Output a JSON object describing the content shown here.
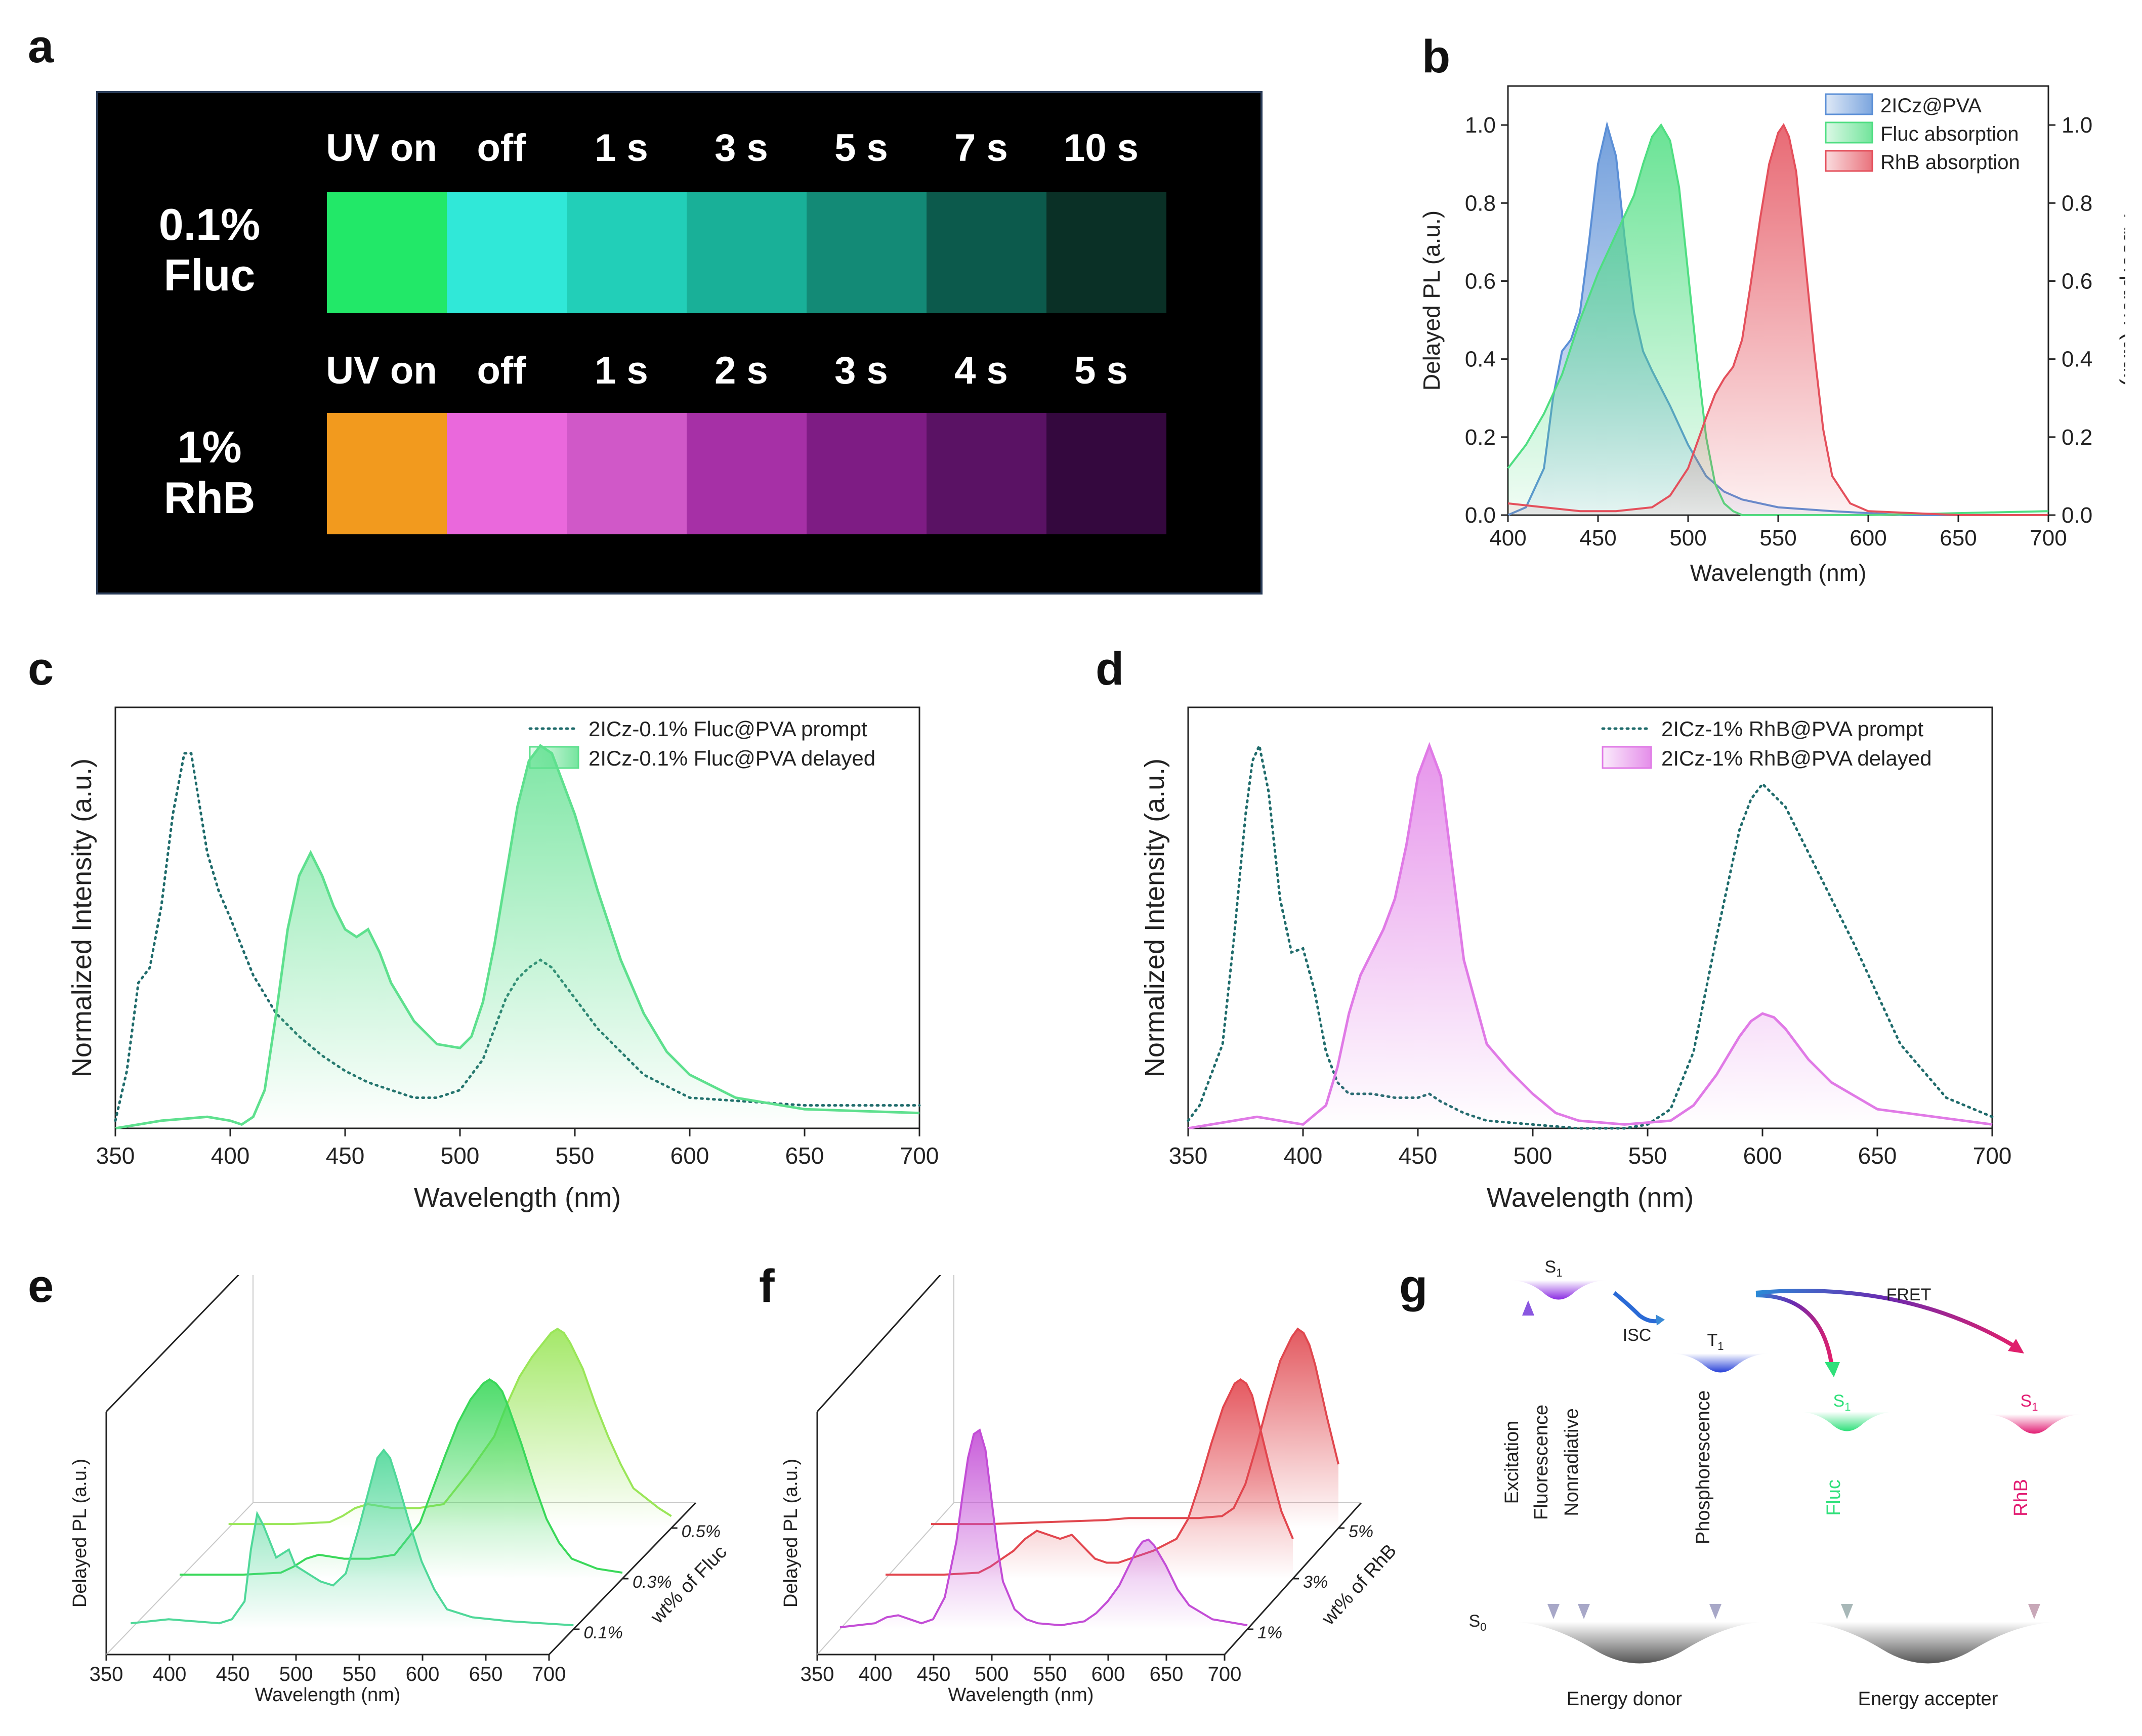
{
  "panels": {
    "a": "a",
    "b": "b",
    "c": "c",
    "d": "d",
    "e": "e",
    "f": "f",
    "g": "g"
  },
  "photo": {
    "row1": {
      "name_line1": "0.1%",
      "name_line2": "Fluc",
      "labels": [
        "UV on",
        "off",
        "1 s",
        "3 s",
        "5 s",
        "7 s",
        "10 s"
      ],
      "colors": [
        "#22e868",
        "#30e8d8",
        "#22cfb8",
        "#19b098",
        "#138a76",
        "#0c5a4c",
        "#0a3026"
      ]
    },
    "row2": {
      "name_line1": "1%",
      "name_line2": "RhB",
      "labels": [
        "UV on",
        "off",
        "1 s",
        "2 s",
        "3 s",
        "4 s",
        "5 s"
      ],
      "colors": [
        "#f29a1e",
        "#ea68dc",
        "#d058c8",
        "#a630a6",
        "#7e1c84",
        "#5a1264",
        "#34083e"
      ]
    }
  },
  "chart_data": [
    {
      "id": "b",
      "type": "area",
      "xlabel": "Wavelength (nm)",
      "ylabel": "Delayed PL (a.u.)",
      "y2label": "Absorption (a.u.)",
      "xlim": [
        400,
        700
      ],
      "ylim": [
        0,
        1.1
      ],
      "y2lim": [
        0,
        1.1
      ],
      "xticks": [
        400,
        450,
        500,
        550,
        600,
        650,
        700
      ],
      "yticks": [
        0.0,
        0.2,
        0.4,
        0.6,
        0.8,
        1.0
      ],
      "legend": "top-right",
      "series": [
        {
          "name": "2ICz@PVA",
          "color": "#5b8fd6",
          "x": [
            400,
            410,
            420,
            425,
            430,
            435,
            440,
            445,
            450,
            455,
            460,
            465,
            470,
            475,
            480,
            490,
            500,
            510,
            520,
            530,
            550,
            580,
            620,
            700
          ],
          "y": [
            0.0,
            0.02,
            0.12,
            0.3,
            0.42,
            0.45,
            0.52,
            0.7,
            0.9,
            1.0,
            0.92,
            0.7,
            0.52,
            0.42,
            0.37,
            0.28,
            0.18,
            0.1,
            0.06,
            0.04,
            0.02,
            0.01,
            0.0,
            0.0
          ]
        },
        {
          "name": "Fluc absorption",
          "color": "#4fde82",
          "x": [
            400,
            410,
            420,
            430,
            440,
            450,
            460,
            470,
            475,
            480,
            485,
            490,
            495,
            500,
            505,
            510,
            515,
            520,
            525,
            530,
            540,
            560,
            600,
            700
          ],
          "y": [
            0.12,
            0.18,
            0.26,
            0.36,
            0.5,
            0.62,
            0.72,
            0.82,
            0.9,
            0.97,
            1.0,
            0.96,
            0.84,
            0.62,
            0.4,
            0.2,
            0.08,
            0.03,
            0.01,
            0.0,
            0.0,
            0.0,
            0.0,
            0.01
          ]
        },
        {
          "name": "RhB absorption",
          "color": "#e4505c",
          "x": [
            400,
            420,
            440,
            460,
            480,
            490,
            500,
            510,
            515,
            520,
            525,
            530,
            535,
            540,
            545,
            550,
            553,
            556,
            560,
            565,
            570,
            575,
            580,
            590,
            600,
            650,
            700
          ],
          "y": [
            0.03,
            0.02,
            0.01,
            0.01,
            0.02,
            0.05,
            0.12,
            0.25,
            0.31,
            0.35,
            0.38,
            0.45,
            0.6,
            0.76,
            0.9,
            0.98,
            1.0,
            0.97,
            0.88,
            0.65,
            0.42,
            0.22,
            0.1,
            0.03,
            0.01,
            0.0,
            0.0
          ]
        }
      ]
    },
    {
      "id": "c",
      "type": "line",
      "xlabel": "Wavelength (nm)",
      "ylabel": "Normalized Intensity (a.u.)",
      "xlim": [
        350,
        700
      ],
      "ylim": [
        0,
        1.1
      ],
      "xticks": [
        350,
        400,
        450,
        500,
        550,
        600,
        650,
        700
      ],
      "legend": "top-right",
      "series": [
        {
          "name": "2ICz-0.1% Fluc@PVA prompt",
          "style": "dotted",
          "color": "#1f6b6b",
          "x": [
            350,
            355,
            360,
            365,
            370,
            375,
            380,
            383,
            390,
            395,
            400,
            410,
            420,
            430,
            440,
            450,
            460,
            470,
            480,
            490,
            500,
            510,
            520,
            525,
            530,
            535,
            540,
            545,
            550,
            560,
            570,
            580,
            600,
            650,
            700
          ],
          "y": [
            0.02,
            0.15,
            0.38,
            0.42,
            0.58,
            0.82,
            0.98,
            0.98,
            0.72,
            0.62,
            0.55,
            0.4,
            0.3,
            0.24,
            0.19,
            0.15,
            0.12,
            0.1,
            0.08,
            0.08,
            0.1,
            0.18,
            0.34,
            0.39,
            0.42,
            0.44,
            0.42,
            0.38,
            0.34,
            0.26,
            0.2,
            0.14,
            0.08,
            0.06,
            0.06
          ]
        },
        {
          "name": "2ICz-0.1% Fluc@PVA delayed",
          "style": "filled",
          "color": "#5ee08e",
          "x": [
            350,
            370,
            390,
            400,
            405,
            410,
            415,
            420,
            425,
            430,
            435,
            440,
            445,
            450,
            455,
            460,
            465,
            470,
            480,
            490,
            500,
            505,
            510,
            515,
            520,
            525,
            530,
            535,
            540,
            545,
            550,
            560,
            570,
            580,
            590,
            600,
            620,
            650,
            700
          ],
          "y": [
            0.0,
            0.02,
            0.03,
            0.02,
            0.01,
            0.03,
            0.1,
            0.3,
            0.52,
            0.66,
            0.72,
            0.66,
            0.58,
            0.52,
            0.5,
            0.52,
            0.46,
            0.38,
            0.28,
            0.22,
            0.21,
            0.24,
            0.33,
            0.48,
            0.66,
            0.84,
            0.96,
            1.0,
            0.98,
            0.9,
            0.82,
            0.62,
            0.44,
            0.3,
            0.2,
            0.14,
            0.08,
            0.05,
            0.04
          ]
        }
      ]
    },
    {
      "id": "d",
      "type": "line",
      "xlabel": "Wavelength (nm)",
      "ylabel": "Normalized Intensity (a.u.)",
      "xlim": [
        350,
        700
      ],
      "ylim": [
        0,
        1.1
      ],
      "xticks": [
        350,
        400,
        450,
        500,
        550,
        600,
        650,
        700
      ],
      "legend": "top-right",
      "series": [
        {
          "name": "2ICz-1% RhB@PVA prompt",
          "style": "dotted",
          "color": "#1f6b6b",
          "x": [
            350,
            355,
            360,
            365,
            370,
            375,
            378,
            381,
            385,
            390,
            395,
            400,
            405,
            410,
            415,
            420,
            430,
            440,
            450,
            455,
            460,
            470,
            480,
            500,
            520,
            540,
            550,
            560,
            570,
            580,
            590,
            595,
            600,
            610,
            620,
            630,
            640,
            650,
            660,
            680,
            700
          ],
          "y": [
            0.02,
            0.06,
            0.14,
            0.22,
            0.5,
            0.82,
            0.96,
            1.0,
            0.88,
            0.6,
            0.46,
            0.47,
            0.36,
            0.2,
            0.12,
            0.09,
            0.09,
            0.08,
            0.08,
            0.09,
            0.07,
            0.04,
            0.02,
            0.01,
            0.0,
            0.0,
            0.01,
            0.05,
            0.2,
            0.5,
            0.78,
            0.86,
            0.9,
            0.84,
            0.72,
            0.6,
            0.48,
            0.35,
            0.22,
            0.08,
            0.03
          ]
        },
        {
          "name": "2ICz-1% RhB@PVA delayed",
          "style": "filled",
          "color": "#e07ae6",
          "x": [
            350,
            360,
            370,
            380,
            390,
            400,
            410,
            415,
            420,
            425,
            430,
            435,
            440,
            445,
            450,
            455,
            460,
            465,
            470,
            480,
            490,
            500,
            510,
            520,
            540,
            560,
            570,
            580,
            590,
            595,
            600,
            605,
            610,
            620,
            630,
            650,
            700
          ],
          "y": [
            0.0,
            0.01,
            0.02,
            0.03,
            0.02,
            0.01,
            0.06,
            0.16,
            0.3,
            0.4,
            0.46,
            0.52,
            0.6,
            0.74,
            0.92,
            1.0,
            0.92,
            0.68,
            0.44,
            0.22,
            0.15,
            0.09,
            0.04,
            0.02,
            0.01,
            0.02,
            0.06,
            0.14,
            0.24,
            0.28,
            0.3,
            0.29,
            0.26,
            0.18,
            0.12,
            0.05,
            0.01
          ]
        }
      ]
    },
    {
      "id": "e",
      "type": "area",
      "xlabel": "Wavelength (nm)",
      "ylabel": "Delayed PL (a.u.)",
      "zlabel": "wt% of Fluc",
      "xlim": [
        350,
        700
      ],
      "xticks": [
        350,
        400,
        450,
        500,
        550,
        600,
        650,
        700
      ],
      "zticks": [
        "0.1%",
        "0.3%",
        "0.5%"
      ],
      "series": [
        {
          "name": "0.1%",
          "color": "#4fd899",
          "x": [
            350,
            380,
            400,
            420,
            430,
            440,
            445,
            450,
            455,
            460,
            465,
            470,
            475,
            480,
            485,
            490,
            495,
            500,
            510,
            520,
            530,
            540,
            545,
            550,
            555,
            560,
            570,
            580,
            590,
            600,
            620,
            650,
            700
          ],
          "y": [
            0.03,
            0.05,
            0.04,
            0.03,
            0.05,
            0.14,
            0.4,
            0.58,
            0.52,
            0.44,
            0.36,
            0.38,
            0.4,
            0.32,
            0.3,
            0.28,
            0.26,
            0.24,
            0.22,
            0.28,
            0.5,
            0.74,
            0.86,
            0.9,
            0.86,
            0.76,
            0.54,
            0.34,
            0.2,
            0.1,
            0.06,
            0.04,
            0.02
          ]
        },
        {
          "name": "0.3%",
          "color": "#3ad85a",
          "x": [
            350,
            400,
            430,
            440,
            450,
            460,
            470,
            480,
            500,
            520,
            540,
            550,
            560,
            570,
            580,
            590,
            595,
            600,
            605,
            610,
            620,
            630,
            640,
            650,
            660,
            680,
            700
          ],
          "y": [
            0.02,
            0.02,
            0.03,
            0.06,
            0.1,
            0.12,
            0.11,
            0.1,
            0.1,
            0.12,
            0.28,
            0.45,
            0.62,
            0.78,
            0.9,
            0.98,
            1.0,
            0.98,
            0.94,
            0.86,
            0.68,
            0.48,
            0.3,
            0.18,
            0.1,
            0.05,
            0.03
          ]
        },
        {
          "name": "0.5%",
          "color": "#9ae658",
          "x": [
            350,
            400,
            430,
            440,
            450,
            460,
            470,
            480,
            500,
            520,
            540,
            560,
            570,
            580,
            590,
            600,
            605,
            610,
            615,
            620,
            630,
            640,
            650,
            660,
            670,
            690,
            700
          ],
          "y": [
            0.02,
            0.02,
            0.03,
            0.06,
            0.1,
            0.12,
            0.11,
            0.1,
            0.1,
            0.12,
            0.28,
            0.46,
            0.62,
            0.76,
            0.86,
            0.94,
            0.98,
            1.0,
            0.98,
            0.93,
            0.8,
            0.62,
            0.46,
            0.32,
            0.2,
            0.1,
            0.06
          ]
        }
      ]
    },
    {
      "id": "f",
      "type": "area",
      "xlabel": "Wavelength (nm)",
      "ylabel": "Delayed PL (a.u.)",
      "zlabel": "wt% of RhB",
      "xlim": [
        350,
        700
      ],
      "xticks": [
        350,
        400,
        450,
        500,
        550,
        600,
        650,
        700
      ],
      "zticks": [
        "1%",
        "3%",
        "5%"
      ],
      "series": [
        {
          "name": "1%",
          "color": "#c34dd6",
          "x": [
            350,
            380,
            390,
            400,
            410,
            420,
            430,
            440,
            450,
            455,
            460,
            465,
            470,
            475,
            480,
            485,
            490,
            500,
            510,
            520,
            540,
            560,
            570,
            580,
            590,
            600,
            605,
            610,
            615,
            620,
            630,
            640,
            650,
            670,
            700
          ],
          "y": [
            0.01,
            0.03,
            0.06,
            0.07,
            0.05,
            0.03,
            0.05,
            0.16,
            0.44,
            0.66,
            0.86,
            0.98,
            1.0,
            0.9,
            0.66,
            0.42,
            0.24,
            0.1,
            0.05,
            0.03,
            0.02,
            0.04,
            0.08,
            0.14,
            0.22,
            0.34,
            0.4,
            0.44,
            0.45,
            0.42,
            0.32,
            0.2,
            0.12,
            0.05,
            0.02
          ]
        },
        {
          "name": "3%",
          "color": "#e2464e",
          "x": [
            350,
            400,
            430,
            440,
            450,
            460,
            470,
            480,
            490,
            500,
            510,
            520,
            530,
            540,
            550,
            560,
            580,
            600,
            610,
            620,
            630,
            640,
            650,
            655,
            660,
            665,
            670,
            680,
            690,
            700
          ],
          "y": [
            0.02,
            0.02,
            0.03,
            0.06,
            0.1,
            0.14,
            0.2,
            0.24,
            0.22,
            0.2,
            0.22,
            0.16,
            0.1,
            0.08,
            0.08,
            0.1,
            0.14,
            0.2,
            0.3,
            0.48,
            0.68,
            0.86,
            0.98,
            1.0,
            0.98,
            0.92,
            0.8,
            0.56,
            0.34,
            0.2
          ]
        },
        {
          "name": "5%",
          "color": "#e0474e",
          "x": [
            350,
            400,
            450,
            500,
            520,
            530,
            540,
            550,
            560,
            580,
            600,
            610,
            620,
            630,
            640,
            650,
            660,
            665,
            670,
            675,
            680,
            690,
            700
          ],
          "y": [
            0.02,
            0.02,
            0.03,
            0.04,
            0.05,
            0.05,
            0.05,
            0.05,
            0.05,
            0.05,
            0.06,
            0.1,
            0.22,
            0.42,
            0.64,
            0.84,
            0.96,
            1.0,
            0.98,
            0.92,
            0.82,
            0.56,
            0.32
          ]
        }
      ]
    }
  ],
  "jablonski": {
    "s1": "S",
    "s1_sub": "1",
    "t1": "T",
    "t1_sub": "1",
    "s0": "S",
    "s0_sub": "0",
    "isc": "ISC",
    "fret": "FRET",
    "excitation": "Excitation",
    "fluorescence": "Fluorescence",
    "nonradiative": "Nonradiative",
    "phosphorescence": "Phosphorescence",
    "fluc": "Fluc",
    "rhb": "RhB",
    "donor": "Energy donor",
    "accepter": "Energy accepter"
  }
}
